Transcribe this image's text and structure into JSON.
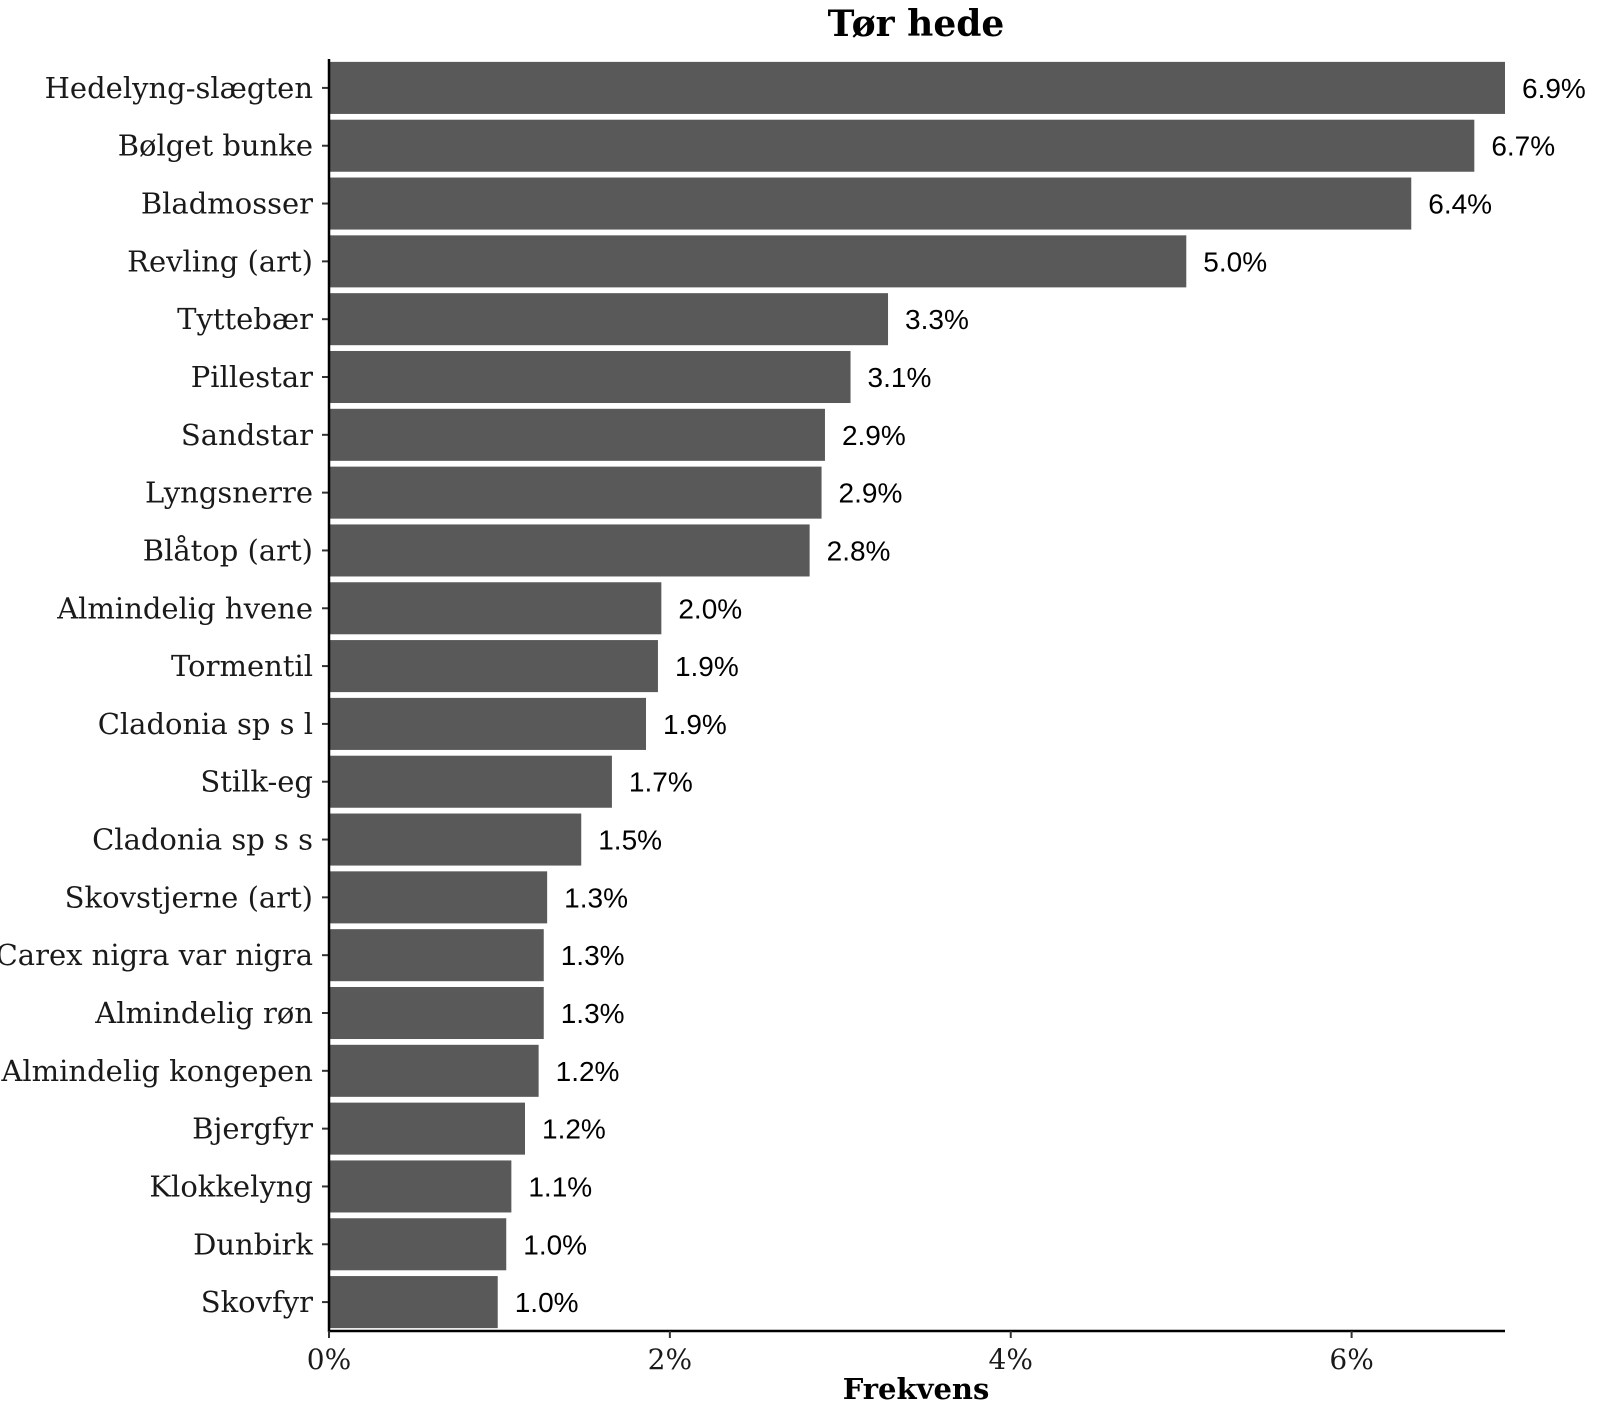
{
  "chart_data": {
    "type": "bar",
    "orientation": "horizontal",
    "title": "Tør hede",
    "xlabel": "Frekvens",
    "ylabel": "",
    "xlim": [
      0,
      6.9
    ],
    "xticks": [
      0,
      2,
      4,
      6
    ],
    "xtick_labels": [
      "0%",
      "2%",
      "4%",
      "6%"
    ],
    "grid": false,
    "legend": "none",
    "bar_color": "#595959",
    "categories": [
      "Hedelyng-slægten",
      "Bølget bunke",
      "Bladmosser",
      "Revling (art)",
      "Tyttebær",
      "Pillestar",
      "Sandstar",
      "Lyngsnerre",
      "Blåtop (art)",
      "Almindelig hvene",
      "Tormentil",
      "Cladonia sp s l",
      "Stilk-eg",
      "Cladonia sp s s",
      "Skovstjerne (art)",
      "Carex nigra var nigra",
      "Almindelig røn",
      "Almindelig kongepen",
      "Bjergfyr",
      "Klokkelyng",
      "Dunbirk",
      "Skovfyr"
    ],
    "values": [
      6.9,
      6.72,
      6.35,
      5.03,
      3.28,
      3.06,
      2.91,
      2.89,
      2.82,
      1.95,
      1.93,
      1.86,
      1.66,
      1.48,
      1.28,
      1.26,
      1.26,
      1.23,
      1.15,
      1.07,
      1.04,
      0.99
    ],
    "data_labels": [
      "6.9%",
      "6.7%",
      "6.4%",
      "5.0%",
      "3.3%",
      "3.1%",
      "2.9%",
      "2.9%",
      "2.8%",
      "2.0%",
      "1.9%",
      "1.9%",
      "1.7%",
      "1.5%",
      "1.3%",
      "1.3%",
      "1.3%",
      "1.2%",
      "1.2%",
      "1.1%",
      "1.0%",
      "1.0%"
    ]
  }
}
